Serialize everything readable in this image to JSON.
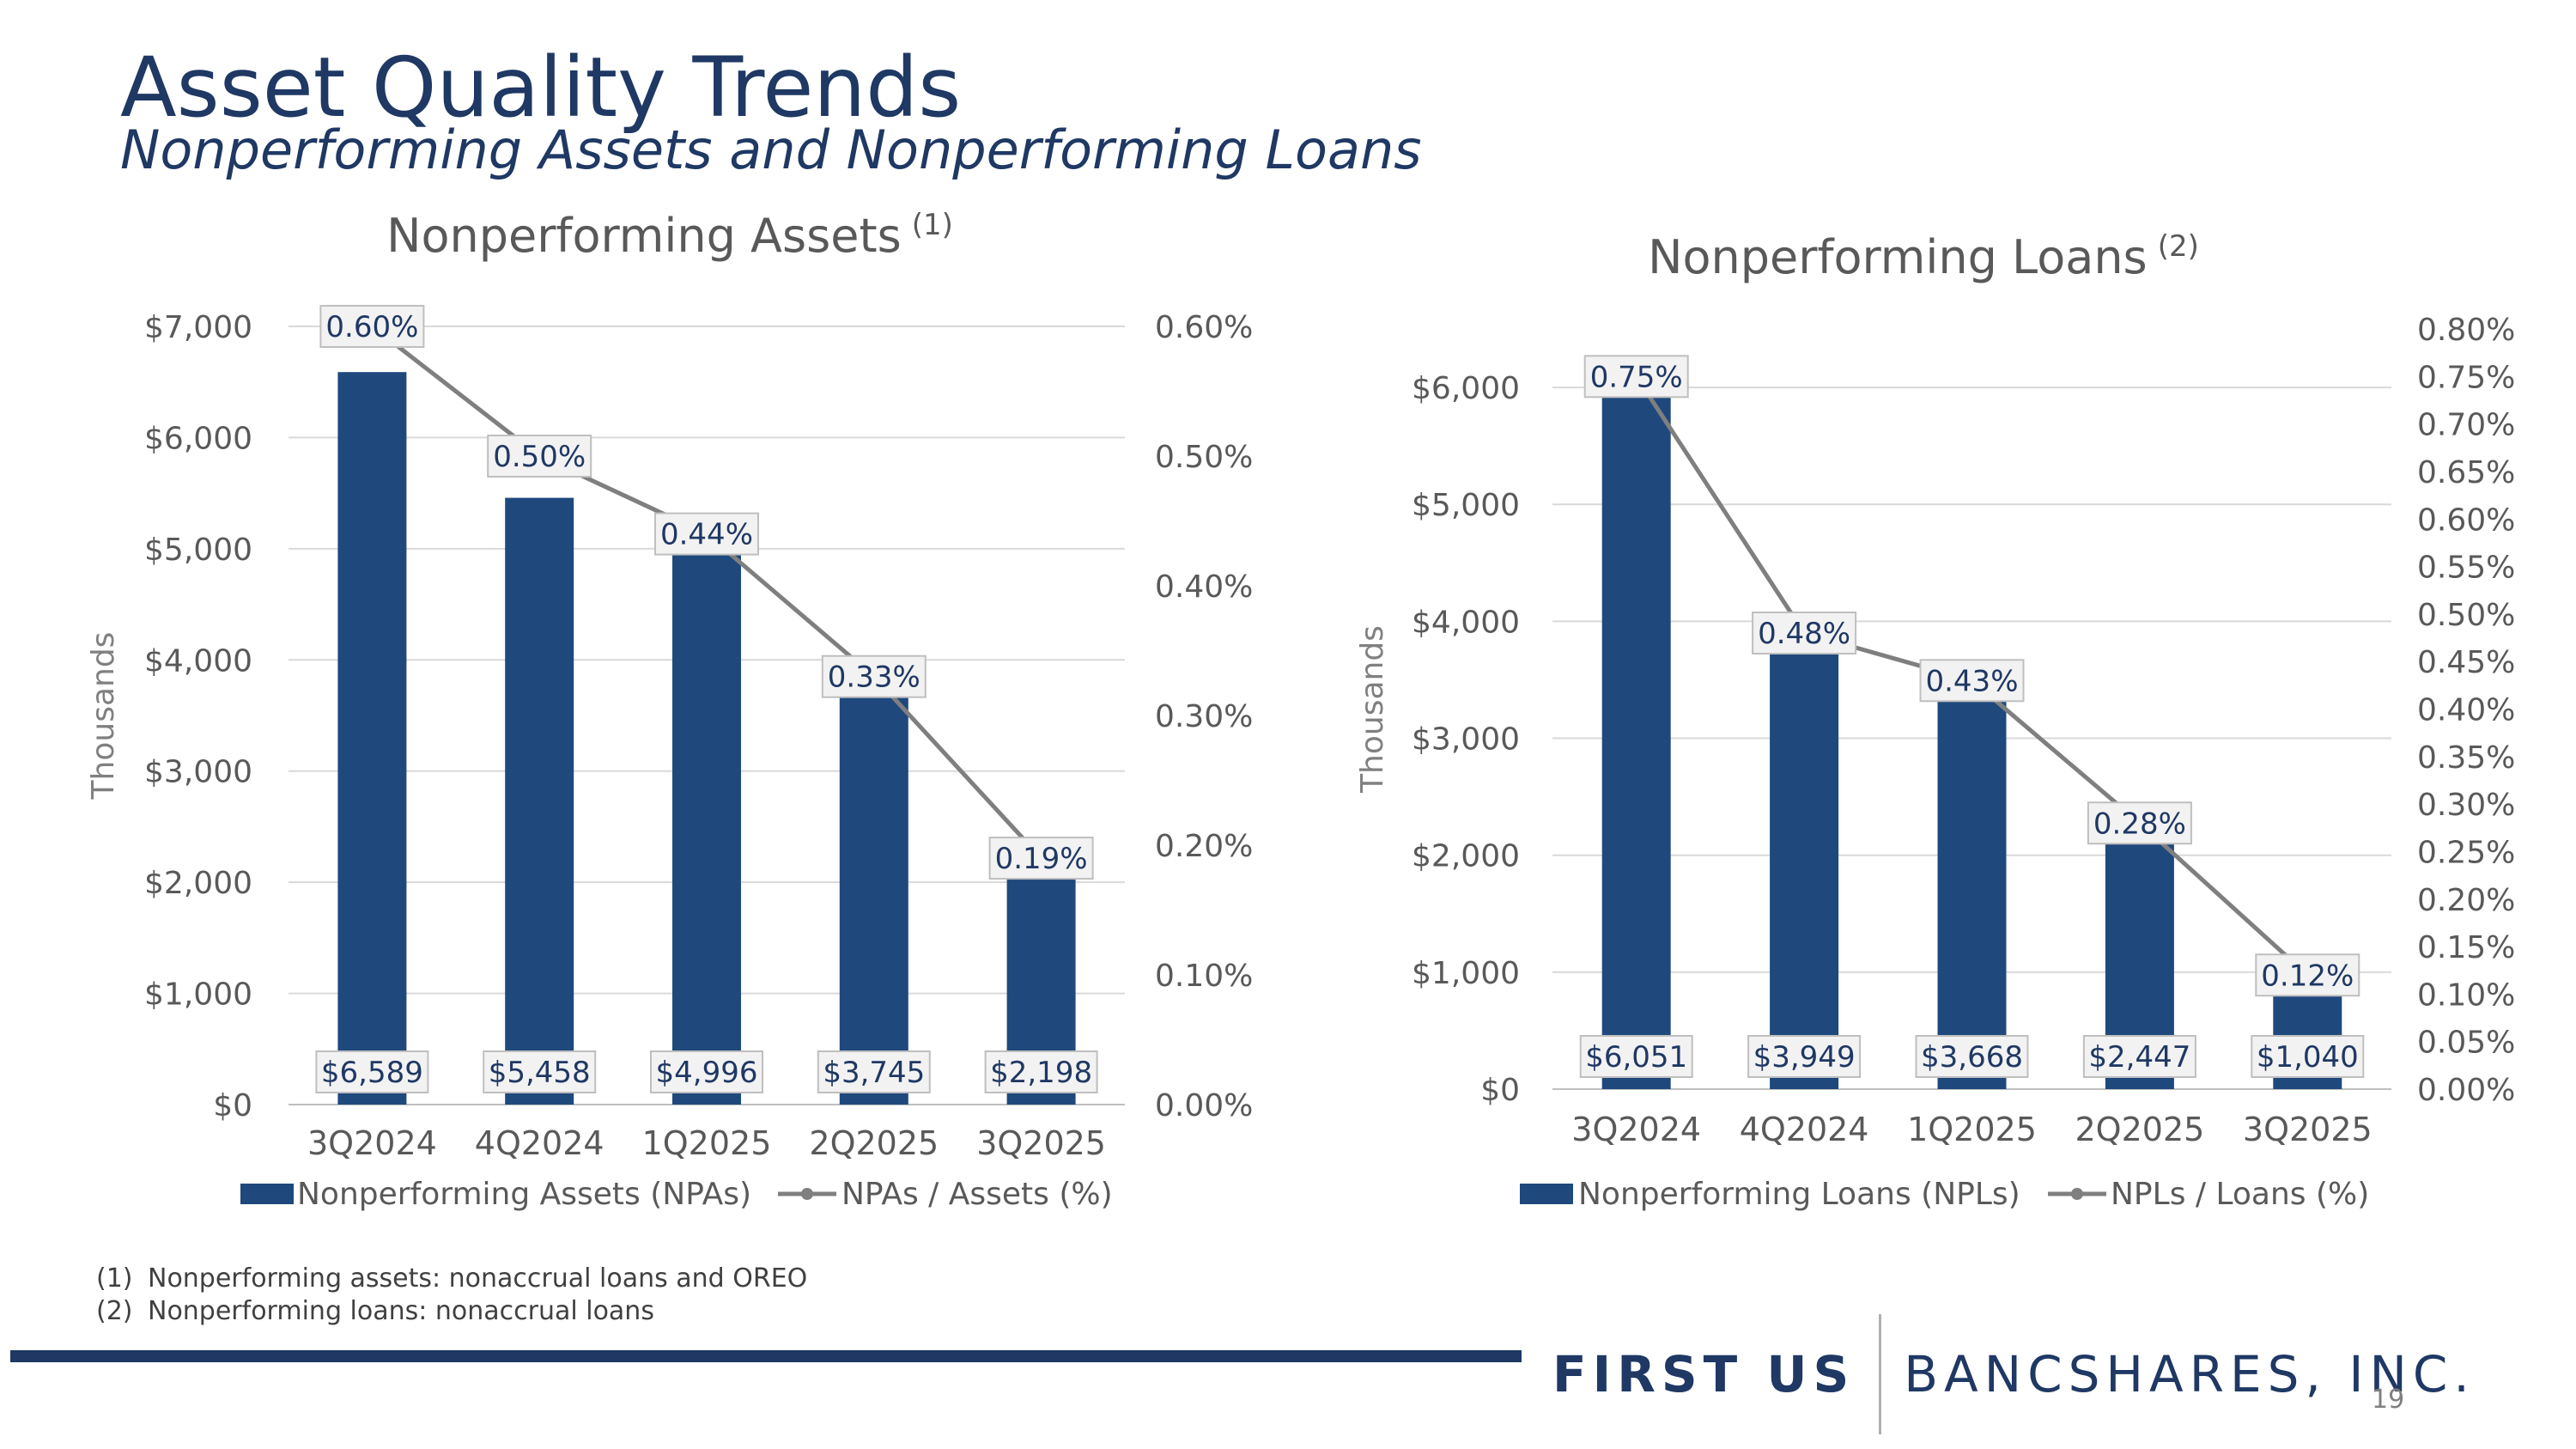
{
  "slide": {
    "title": "Asset Quality Trends",
    "subtitle": "Nonperforming Assets and Nonperforming Loans",
    "footnotes": [
      {
        "num": "(1)",
        "text": "Nonperforming assets: nonaccrual loans and OREO"
      },
      {
        "num": "(2)",
        "text": "Nonperforming loans: nonaccrual loans"
      }
    ],
    "logo": {
      "strong": "FIRST US",
      "light": "BANCSHARES, INC."
    },
    "page_number": "19"
  },
  "colors": {
    "bar": "#1f497d",
    "line": "#7f7f7f",
    "title_text": "#1f3864",
    "axis_text": "#595959",
    "label_text": "#1f3864",
    "label_fill": "#f2f2f2",
    "grid": "#d9d9d9"
  },
  "chart_data": [
    {
      "type": "bar",
      "title": "Nonperforming Assets",
      "title_superscript": "(1)",
      "ylabel": "Thousands",
      "categories": [
        "3Q2024",
        "4Q2024",
        "1Q2025",
        "2Q2025",
        "3Q2025"
      ],
      "ylim": [
        0,
        7000
      ],
      "y_ticks": [
        0,
        1000,
        2000,
        3000,
        4000,
        5000,
        6000,
        7000
      ],
      "y_tick_labels": [
        "$0",
        "$1,000",
        "$2,000",
        "$3,000",
        "$4,000",
        "$5,000",
        "$6,000",
        "$7,000"
      ],
      "y2lim": [
        0,
        0.6
      ],
      "y2_ticks": [
        0,
        0.1,
        0.2,
        0.3,
        0.4,
        0.5,
        0.6
      ],
      "y2_tick_labels": [
        "0.00%",
        "0.10%",
        "0.20%",
        "0.30%",
        "0.40%",
        "0.50%",
        "0.60%"
      ],
      "grid": true,
      "legend": "bottom",
      "series": [
        {
          "name": "Nonperforming Assets (NPAs)",
          "type": "bar",
          "axis": "left",
          "values": [
            6589,
            5458,
            4996,
            3745,
            2198
          ],
          "labels": [
            "$6,589",
            "$5,458",
            "$4,996",
            "$3,745",
            "$2,198"
          ]
        },
        {
          "name": "NPAs / Assets (%)",
          "type": "line",
          "axis": "right",
          "values": [
            0.6,
            0.5,
            0.44,
            0.33,
            0.19
          ],
          "labels": [
            "0.60%",
            "0.50%",
            "0.44%",
            "0.33%",
            "0.19%"
          ]
        }
      ]
    },
    {
      "type": "bar",
      "title": "Nonperforming Loans",
      "title_superscript": "(2)",
      "ylabel": "Thousands",
      "categories": [
        "3Q2024",
        "4Q2024",
        "1Q2025",
        "2Q2025",
        "3Q2025"
      ],
      "ylim": [
        0,
        6500
      ],
      "y_ticks": [
        0,
        1000,
        2000,
        3000,
        4000,
        5000,
        6000
      ],
      "y_tick_labels": [
        "$0",
        "$1,000",
        "$2,000",
        "$3,000",
        "$4,000",
        "$5,000",
        "$6,000"
      ],
      "y2lim": [
        0,
        0.8
      ],
      "y2_ticks": [
        0,
        0.05,
        0.1,
        0.15,
        0.2,
        0.25,
        0.3,
        0.35,
        0.4,
        0.45,
        0.5,
        0.55,
        0.6,
        0.65,
        0.7,
        0.75,
        0.8
      ],
      "y2_tick_labels": [
        "0.00%",
        "0.05%",
        "0.10%",
        "0.15%",
        "0.20%",
        "0.25%",
        "0.30%",
        "0.35%",
        "0.40%",
        "0.45%",
        "0.50%",
        "0.55%",
        "0.60%",
        "0.65%",
        "0.70%",
        "0.75%",
        "0.80%"
      ],
      "grid": true,
      "legend": "bottom",
      "series": [
        {
          "name": "Nonperforming Loans (NPLs)",
          "type": "bar",
          "axis": "left",
          "values": [
            6051,
            3949,
            3668,
            2447,
            1040
          ],
          "labels": [
            "$6,051",
            "$3,949",
            "$3,668",
            "$2,447",
            "$1,040"
          ]
        },
        {
          "name": "NPLs / Loans (%)",
          "type": "line",
          "axis": "right",
          "values": [
            0.75,
            0.48,
            0.43,
            0.28,
            0.12
          ],
          "labels": [
            "0.75%",
            "0.48%",
            "0.43%",
            "0.28%",
            "0.12%"
          ]
        }
      ]
    }
  ]
}
